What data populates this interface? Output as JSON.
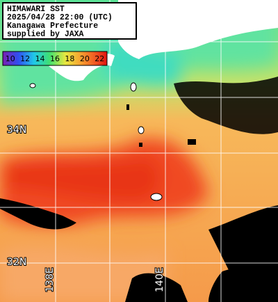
{
  "header": {
    "lines": [
      "HIMAWARI SST",
      "2025/04/28 22:00 (UTC)",
      "Kanagawa Prefecture",
      "supplied by JAXA"
    ]
  },
  "colorbar": {
    "labels": [
      10,
      12,
      14,
      16,
      18,
      20,
      22
    ]
  },
  "latitude_labels": [
    "34N",
    "32N"
  ],
  "longitude_labels": [
    "138E",
    "140E"
  ]
}
